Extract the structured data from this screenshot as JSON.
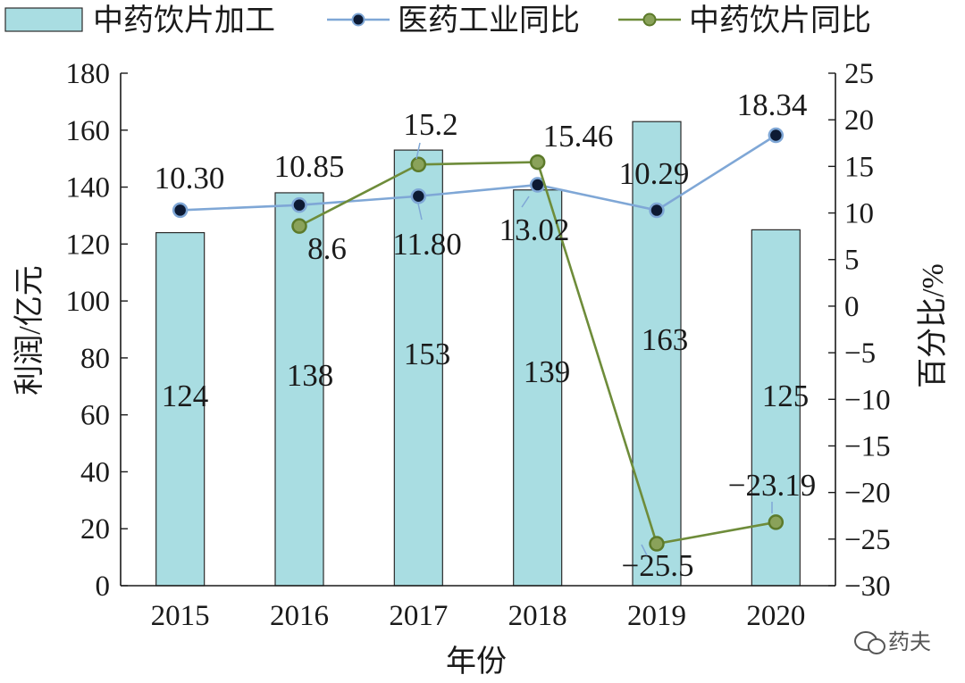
{
  "chart_data": {
    "type": "bar+line",
    "title": "",
    "categories": [
      "2015",
      "2016",
      "2017",
      "2018",
      "2019",
      "2020"
    ],
    "xlabel": "年份",
    "ylabel": "利润/亿元",
    "y2label": "百分比/%",
    "ylim": [
      0,
      180
    ],
    "yticks": [
      0,
      20,
      40,
      60,
      80,
      100,
      120,
      140,
      160,
      180
    ],
    "y2lim": [
      -30,
      25
    ],
    "y2ticks": [
      "−30",
      "−25",
      "−20",
      "−15",
      "−10",
      "−5",
      "0",
      "5",
      "10",
      "15",
      "20",
      "25"
    ],
    "y2tick_values": [
      -30,
      -25,
      -20,
      -15,
      -10,
      -5,
      0,
      5,
      10,
      15,
      20,
      25
    ],
    "legend_position": "top",
    "series": [
      {
        "name": "中药饮片加工",
        "type": "bar",
        "axis": "left",
        "color": "#a9dde2",
        "values": [
          124,
          138,
          153,
          139,
          163,
          125
        ],
        "labels": [
          "124",
          "138",
          "153",
          "139",
          "163",
          "125"
        ]
      },
      {
        "name": "医药工业同比",
        "type": "line",
        "axis": "right",
        "color": "#7fa7d6",
        "marker_color": "#0d1a33",
        "values": [
          10.3,
          10.85,
          11.8,
          13.02,
          10.29,
          18.34
        ],
        "labels": [
          "10.30",
          "10.85",
          "11.80",
          "13.02",
          "10.29",
          "18.34"
        ]
      },
      {
        "name": "中药饮片同比",
        "type": "line",
        "axis": "right",
        "color": "#6e8c3a",
        "marker_color": "#8aa25a",
        "values": [
          null,
          8.6,
          15.2,
          15.46,
          -25.5,
          -23.19
        ],
        "labels": [
          null,
          "8.6",
          "15.2",
          "15.46",
          "−25.5",
          "−23.19"
        ]
      }
    ]
  },
  "watermark": {
    "icon": "wechat-icon",
    "text": "药夫"
  }
}
